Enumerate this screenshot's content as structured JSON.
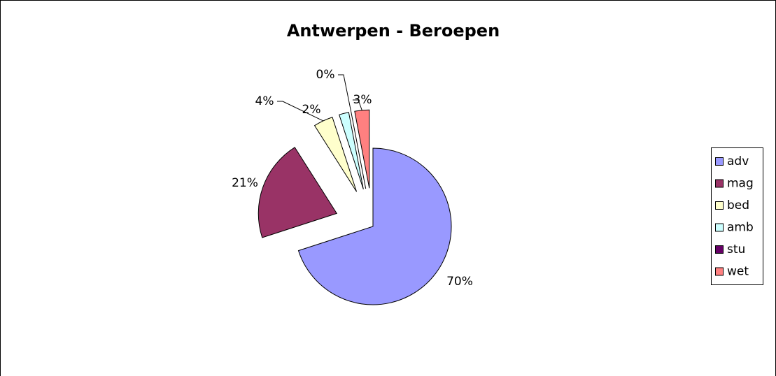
{
  "chart_data": {
    "type": "pie",
    "title": "Antwerpen - Beroepen",
    "categories": [
      "adv",
      "mag",
      "bed",
      "amb",
      "stu",
      "wet"
    ],
    "values": [
      70,
      21,
      4,
      2,
      0,
      3
    ],
    "value_labels": [
      "70%",
      "21%",
      "4%",
      "2%",
      "0%",
      "3%"
    ],
    "colors": [
      "#9999ff",
      "#993366",
      "#ffffcc",
      "#ccffff",
      "#660066",
      "#ff8080"
    ],
    "legend": "right"
  }
}
